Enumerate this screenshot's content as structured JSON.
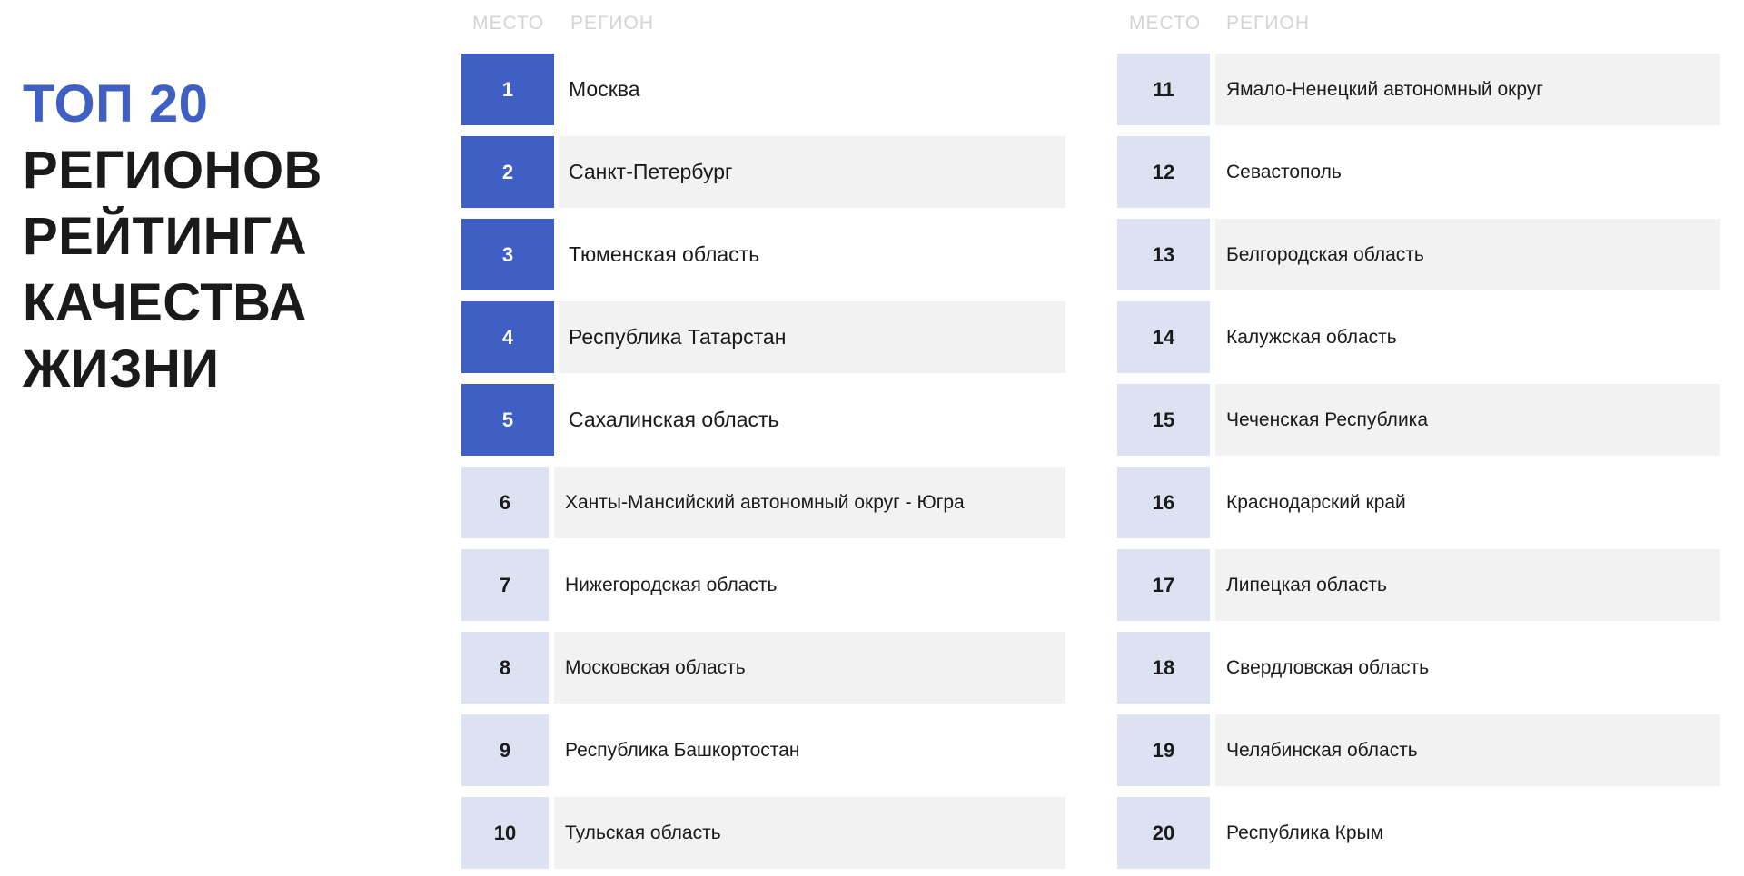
{
  "title": {
    "line1": "ТОП 20",
    "line2": "РЕГИОНОВ",
    "line3": "РЕЙТИНГА",
    "line4": "КАЧЕСТВА",
    "line5": "ЖИЗНИ"
  },
  "headers": {
    "rank": "МЕСТО",
    "region": "РЕГИОН"
  },
  "colors": {
    "accent": "#3f5fc4",
    "rank_light": "#dde2f2",
    "stripe": "#f2f2f2"
  },
  "left": [
    {
      "rank": "1",
      "region": "Москва"
    },
    {
      "rank": "2",
      "region": "Санкт-Петербург"
    },
    {
      "rank": "3",
      "region": "Тюменская область"
    },
    {
      "rank": "4",
      "region": "Республика Татарстан"
    },
    {
      "rank": "5",
      "region": "Сахалинская область"
    },
    {
      "rank": "6",
      "region": "Ханты-Мансийский автономный округ - Югра"
    },
    {
      "rank": "7",
      "region": "Нижегородская область"
    },
    {
      "rank": "8",
      "region": "Московская область"
    },
    {
      "rank": "9",
      "region": "Республика Башкортостан"
    },
    {
      "rank": "10",
      "region": "Тульская область"
    }
  ],
  "right": [
    {
      "rank": "11",
      "region": "Ямало-Ненецкий автономный округ"
    },
    {
      "rank": "12",
      "region": "Севастополь"
    },
    {
      "rank": "13",
      "region": "Белгородская область"
    },
    {
      "rank": "14",
      "region": "Калужская область"
    },
    {
      "rank": "15",
      "region": "Чеченская Республика"
    },
    {
      "rank": "16",
      "region": "Краснодарский край"
    },
    {
      "rank": "17",
      "region": "Липецкая область"
    },
    {
      "rank": "18",
      "region": "Свердловская область"
    },
    {
      "rank": "19",
      "region": "Челябинская область"
    },
    {
      "rank": "20",
      "region": "Республика Крым"
    }
  ]
}
